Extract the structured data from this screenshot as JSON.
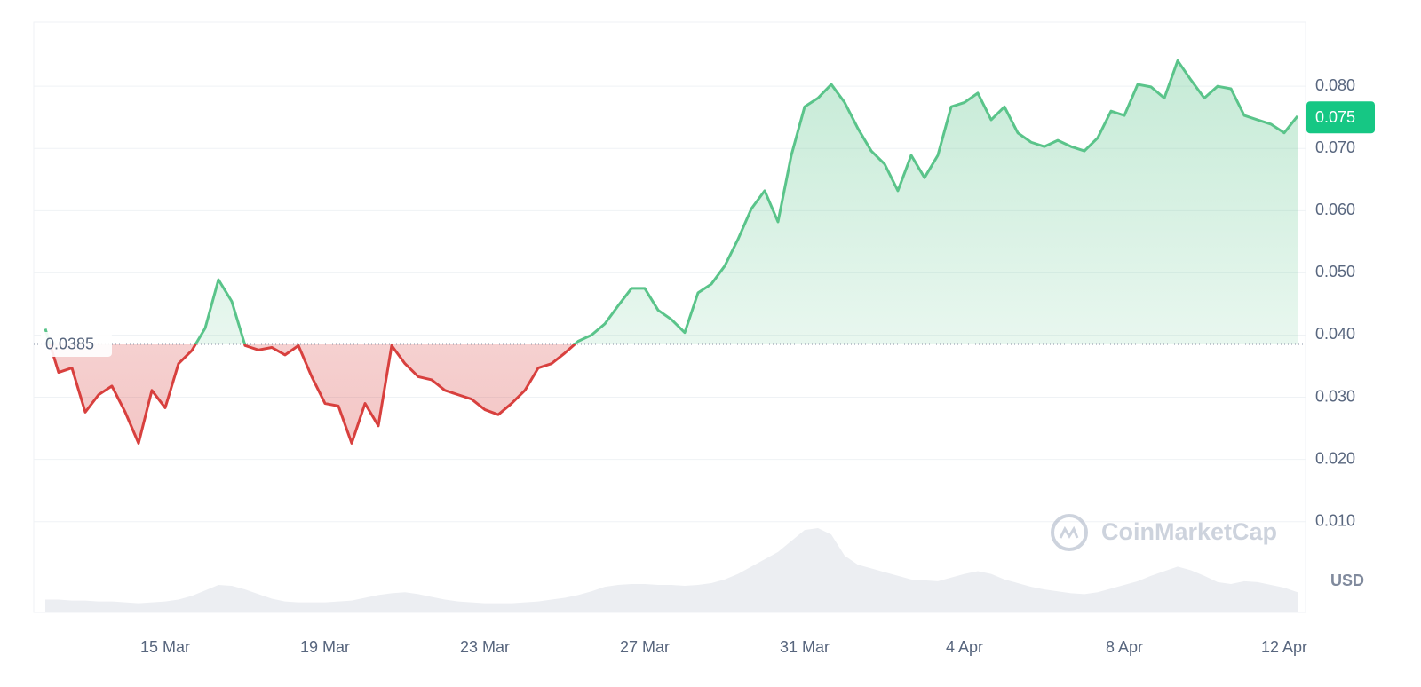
{
  "chart_data": {
    "type": "line",
    "categories": [
      null,
      null,
      null,
      null,
      null,
      null,
      null,
      null,
      null,
      "15 Mar",
      null,
      null,
      null,
      null,
      null,
      null,
      null,
      null,
      null,
      null,
      null,
      "19 Mar",
      null,
      null,
      null,
      null,
      null,
      null,
      null,
      null,
      null,
      null,
      null,
      "23 Mar",
      null,
      null,
      null,
      null,
      null,
      null,
      null,
      null,
      null,
      null,
      null,
      "27 Mar",
      null,
      null,
      null,
      null,
      null,
      null,
      null,
      null,
      null,
      null,
      null,
      "31 Mar",
      null,
      null,
      null,
      null,
      null,
      null,
      null,
      null,
      null,
      null,
      null,
      "4 Apr",
      null,
      null,
      null,
      null,
      null,
      null,
      null,
      null,
      null,
      null,
      null,
      "8 Apr",
      null,
      null,
      null,
      null,
      null,
      null,
      null,
      null,
      null,
      null,
      null,
      "12 Apr",
      null
    ],
    "values": [
      0.041,
      0.034,
      0.0347,
      0.0276,
      0.0304,
      0.0318,
      0.0276,
      0.0226,
      0.0311,
      0.0283,
      0.0354,
      0.0375,
      0.0411,
      0.0489,
      0.0454,
      0.0383,
      0.0376,
      0.038,
      0.0368,
      0.0383,
      0.0333,
      0.029,
      0.0286,
      0.0226,
      0.029,
      0.0254,
      0.0383,
      0.0354,
      0.0333,
      0.0328,
      0.0311,
      0.0304,
      0.0297,
      0.028,
      0.0272,
      0.029,
      0.0311,
      0.0347,
      0.0354,
      0.0371,
      0.039,
      0.04,
      0.0418,
      0.0447,
      0.0475,
      0.0475,
      0.044,
      0.0425,
      0.0404,
      0.0468,
      0.0482,
      0.0511,
      0.0554,
      0.0603,
      0.0632,
      0.0582,
      0.0689,
      0.0767,
      0.0781,
      0.0803,
      0.0774,
      0.0732,
      0.0696,
      0.0675,
      0.0632,
      0.0689,
      0.0653,
      0.0689,
      0.0767,
      0.0774,
      0.0789,
      0.0746,
      0.0767,
      0.0725,
      0.071,
      0.0703,
      0.0713,
      0.0703,
      0.0696,
      0.0717,
      0.076,
      0.0753,
      0.0803,
      0.0799,
      0.0781,
      0.0841,
      0.081,
      0.0781,
      0.08,
      0.0796,
      0.0753,
      0.0746,
      0.0739,
      0.0725,
      0.0752
    ],
    "volume": [
      14,
      14,
      13,
      13,
      12,
      12,
      11,
      10,
      11,
      12,
      14,
      18,
      24,
      30,
      29,
      25,
      20,
      15,
      12,
      11,
      11,
      11,
      12,
      13,
      16,
      19,
      21,
      22,
      20,
      17,
      14,
      12,
      11,
      10,
      10,
      10,
      11,
      12,
      14,
      16,
      19,
      23,
      28,
      30,
      31,
      31,
      30,
      30,
      29,
      30,
      32,
      36,
      42,
      50,
      58,
      66,
      78,
      90,
      92,
      85,
      62,
      52,
      48,
      44,
      40,
      36,
      35,
      34,
      38,
      42,
      45,
      42,
      36,
      32,
      28,
      25,
      23,
      21,
      20,
      22,
      26,
      30,
      34,
      40,
      45,
      50,
      46,
      40,
      33,
      31,
      34,
      33,
      30,
      27,
      22
    ],
    "baseline": 0.0385,
    "current_price": 0.075,
    "unit": "USD",
    "watermark": "CoinMarketCap",
    "up_color": "#5ac48a",
    "down_color": "#d8403e",
    "volume_color": "#eceef2",
    "ylim": [
      -0.0046,
      0.0903
    ],
    "yticks": [
      {
        "value": 0.01,
        "label": "0.010"
      },
      {
        "value": 0.02,
        "label": "0.020"
      },
      {
        "value": 0.03,
        "label": "0.030"
      },
      {
        "value": 0.04,
        "label": "0.040"
      },
      {
        "value": 0.05,
        "label": "0.050"
      },
      {
        "value": 0.06,
        "label": "0.060"
      },
      {
        "value": 0.07,
        "label": "0.070"
      },
      {
        "value": 0.08,
        "label": "0.080"
      }
    ],
    "grid": true
  }
}
